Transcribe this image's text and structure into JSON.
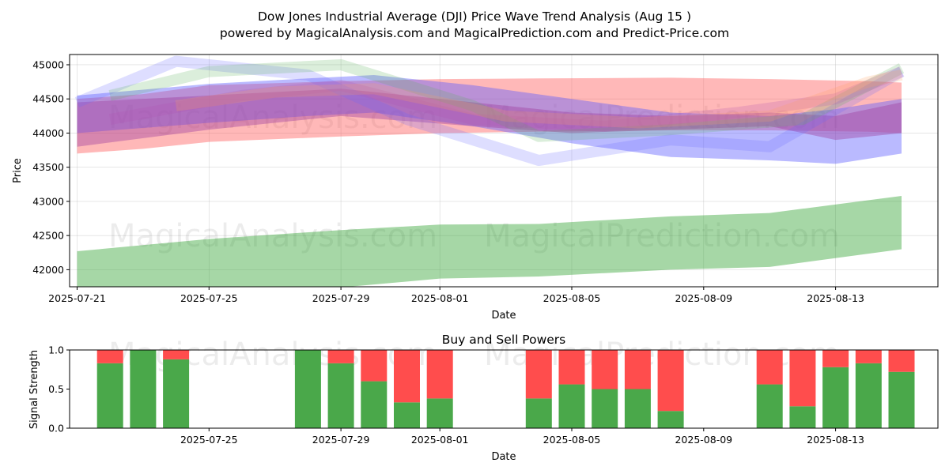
{
  "chart_data": [
    {
      "type": "area",
      "title": "Dow Jones Industrial Average (DJI) Price Wave Trend Analysis (Aug 15 )",
      "subtitle": "powered by MagicalAnalysis.com and MagicalPrediction.com and Predict-Price.com",
      "xlabel": "Date",
      "ylabel": "Price",
      "grid": true,
      "x_ticks": [
        "2025-07-21",
        "2025-07-25",
        "2025-07-29",
        "2025-08-01",
        "2025-08-05",
        "2025-08-09",
        "2025-08-13"
      ],
      "y_ticks": [
        42000,
        42500,
        43000,
        43500,
        44000,
        44500,
        45000
      ],
      "ylim": [
        41750,
        45150
      ],
      "watermarks": [
        "MagicalAnalysis.com",
        "MagicalPrediction.com"
      ],
      "series": [
        {
          "name": "green-lower-band",
          "color": "#2ca02c",
          "x": [
            0,
            4,
            8,
            11,
            14,
            18,
            21,
            25
          ],
          "upper": [
            42270,
            42450,
            42580,
            42660,
            42670,
            42780,
            42830,
            43080
          ],
          "lower": [
            41700,
            41720,
            41740,
            41870,
            41900,
            42000,
            42040,
            42300
          ]
        },
        {
          "name": "red-band",
          "color": "#ff5555",
          "x": [
            0,
            2,
            4,
            8,
            11,
            14,
            18,
            21,
            24,
            25
          ],
          "upper": [
            44500,
            44570,
            44700,
            44760,
            44790,
            44800,
            44810,
            44790,
            44760,
            44740
          ],
          "lower": [
            43700,
            43770,
            43870,
            43950,
            44000,
            44020,
            44040,
            44040,
            44020,
            44000
          ]
        },
        {
          "name": "blue-band",
          "color": "#5a5aff",
          "x": [
            0,
            4,
            7,
            9,
            12,
            15,
            18,
            21,
            23,
            25
          ],
          "upper": [
            44550,
            44720,
            44800,
            44850,
            44700,
            44500,
            44300,
            44250,
            44350,
            44500
          ],
          "lower": [
            44000,
            44150,
            44250,
            44300,
            44100,
            43850,
            43650,
            43600,
            43550,
            43700
          ]
        },
        {
          "name": "purple-band",
          "color": "#a040a0",
          "x": [
            0,
            4,
            8,
            12,
            15,
            18,
            21,
            23,
            25
          ],
          "upper": [
            44450,
            44550,
            44650,
            44450,
            44300,
            44250,
            44300,
            44250,
            44450
          ],
          "lower": [
            43800,
            44050,
            44250,
            44100,
            44000,
            44050,
            44100,
            43900,
            44000
          ]
        }
      ],
      "wave_lines": [
        {
          "color": "#6a6aff",
          "x": [
            0,
            3,
            7,
            10,
            14,
            18,
            21,
            25
          ],
          "values": [
            44450,
            45050,
            44850,
            44200,
            43600,
            43900,
            43800,
            44900
          ]
        },
        {
          "color": "#5ab05a",
          "x": [
            1,
            4,
            8,
            12,
            14,
            18,
            22,
            25
          ],
          "values": [
            44550,
            44900,
            45000,
            44400,
            43950,
            44050,
            44200,
            44950
          ]
        },
        {
          "color": "#b050b0",
          "x": [
            1,
            5,
            8,
            12,
            16,
            20,
            23,
            25
          ],
          "values": [
            44200,
            44550,
            44700,
            44200,
            44100,
            44300,
            44500,
            44900
          ]
        },
        {
          "color": "#ffa060",
          "x": [
            3,
            6,
            9,
            13,
            17,
            21,
            24,
            25
          ],
          "values": [
            44400,
            44600,
            44650,
            44250,
            44150,
            44250,
            44750,
            44850
          ]
        }
      ]
    },
    {
      "type": "bar",
      "title": "Buy and Sell Powers",
      "xlabel": "Date",
      "ylabel": "Signal Strength",
      "ylim": [
        0,
        1
      ],
      "y_ticks": [
        "0.0",
        "0.5",
        "1.0"
      ],
      "x_ticks": [
        "2025-07-25",
        "2025-07-29",
        "2025-08-01",
        "2025-08-05",
        "2025-08-09",
        "2025-08-13"
      ],
      "buy_color": "#4aa84a",
      "sell_color": "#ff4d4d",
      "day_index": [
        1,
        2,
        3,
        7,
        8,
        9,
        10,
        11,
        14,
        15,
        16,
        17,
        18,
        21,
        22,
        23,
        24,
        25
      ],
      "buy": [
        0.83,
        1.0,
        0.88,
        1.0,
        0.83,
        0.6,
        0.33,
        0.38,
        0.38,
        0.56,
        0.5,
        0.5,
        0.22,
        0.56,
        0.28,
        0.78,
        0.83,
        0.72
      ]
    }
  ]
}
